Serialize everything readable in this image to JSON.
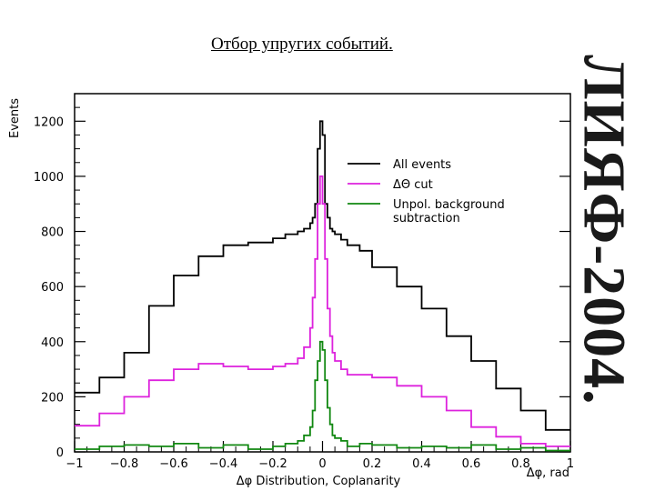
{
  "slide": {
    "title": "Отбор упругих событий.",
    "side_banner": "ЛИЯФ-2004."
  },
  "chart_data": {
    "type": "line",
    "step": true,
    "title": "",
    "xlabel": "Δφ Distribution, Coplanarity",
    "xunit_label": "Δφ, rad",
    "ylabel": "Events",
    "xlim": [
      -1,
      1
    ],
    "ylim": [
      0,
      1300
    ],
    "xticks": [
      -1,
      -0.8,
      -0.6,
      -0.4,
      -0.2,
      0,
      0.2,
      0.4,
      0.6,
      0.8,
      1
    ],
    "xtick_labels": [
      "−1",
      "−0.8",
      "−0.6",
      "−0.4",
      "−0.2",
      "0",
      "0.2",
      "0.4",
      "0.6",
      "0.8",
      "1"
    ],
    "yticks": [
      0,
      200,
      400,
      600,
      800,
      1000,
      1200
    ],
    "ytick_labels": [
      "0",
      "200",
      "400",
      "600",
      "800",
      "1000",
      "1200"
    ],
    "grid": false,
    "legend_position": "top-right",
    "bin_edges": [
      -1,
      -0.9,
      -0.8,
      -0.7,
      -0.6,
      -0.5,
      -0.4,
      -0.3,
      -0.2,
      -0.15,
      -0.1,
      -0.075,
      -0.05,
      -0.04,
      -0.03,
      -0.02,
      -0.01,
      0,
      0.01,
      0.02,
      0.03,
      0.04,
      0.05,
      0.075,
      0.1,
      0.15,
      0.2,
      0.3,
      0.4,
      0.5,
      0.6,
      0.7,
      0.8,
      0.9,
      1
    ],
    "series": [
      {
        "name": "All events",
        "color": "#000000",
        "values": [
          215,
          270,
          360,
          530,
          640,
          710,
          750,
          760,
          775,
          790,
          800,
          810,
          830,
          850,
          900,
          1100,
          1200,
          1150,
          900,
          850,
          810,
          800,
          790,
          770,
          750,
          730,
          670,
          600,
          520,
          420,
          330,
          230,
          150,
          80
        ]
      },
      {
        "name": "ΔΘ cut",
        "color": "#dd22dd",
        "values": [
          95,
          140,
          200,
          260,
          300,
          320,
          310,
          300,
          310,
          320,
          340,
          380,
          450,
          560,
          700,
          900,
          1000,
          900,
          700,
          520,
          420,
          360,
          330,
          300,
          280,
          280,
          270,
          240,
          200,
          150,
          90,
          55,
          30,
          20
        ]
      },
      {
        "name": "Unpol. background subtraction",
        "color": "#118811",
        "values": [
          10,
          20,
          25,
          20,
          30,
          15,
          25,
          10,
          20,
          30,
          40,
          60,
          90,
          150,
          260,
          330,
          400,
          370,
          260,
          160,
          100,
          60,
          50,
          40,
          20,
          30,
          25,
          15,
          20,
          15,
          25,
          10,
          15,
          5
        ]
      }
    ]
  }
}
